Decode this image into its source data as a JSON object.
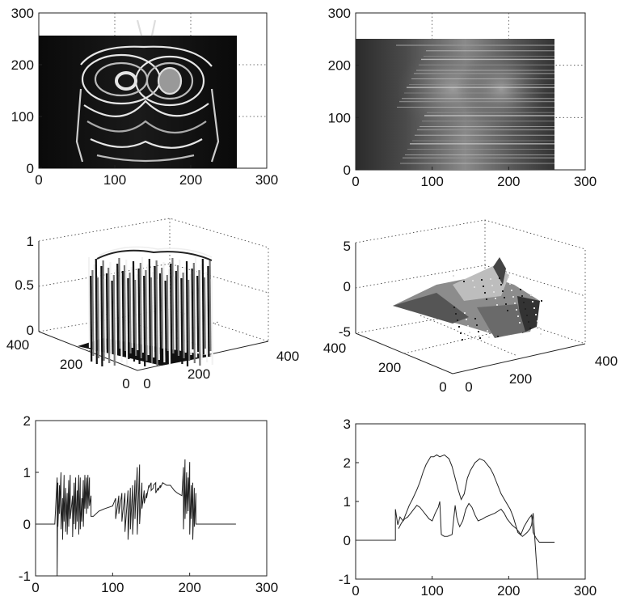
{
  "chart_data": [
    {
      "id": "wrapped-phase-image",
      "type": "heatmap",
      "description_hidden": true,
      "xlim": [
        0,
        300
      ],
      "ylim": [
        0,
        300
      ],
      "x_ticks": [
        "0",
        "100",
        "200",
        "300"
      ],
      "y_ticks": [
        "0",
        "100",
        "200",
        "300"
      ],
      "image_extent": {
        "x": [
          0,
          256
        ],
        "y": [
          0,
          256
        ]
      },
      "grid": true
    },
    {
      "id": "unwrapped-phase-image",
      "type": "heatmap",
      "xlim": [
        0,
        300
      ],
      "ylim": [
        0,
        300
      ],
      "x_ticks": [
        "0",
        "100",
        "200",
        "300"
      ],
      "y_ticks": [
        "0",
        "100",
        "200",
        "300"
      ],
      "image_extent": {
        "x": [
          0,
          256
        ],
        "y": [
          0,
          256
        ]
      },
      "grid": true
    },
    {
      "id": "wrapped-phase-surface",
      "type": "surface",
      "zlim": [
        0,
        1
      ],
      "z_ticks": [
        "0",
        "0.5",
        "1"
      ],
      "x_ticks": [
        "0",
        "200",
        "400"
      ],
      "y_ticks": [
        "0",
        "200",
        "400"
      ],
      "grid": true
    },
    {
      "id": "unwrapped-phase-surface",
      "type": "surface",
      "zlim": [
        -5,
        5
      ],
      "z_ticks": [
        "-5",
        "0",
        "5"
      ],
      "x_ticks": [
        "0",
        "200",
        "400"
      ],
      "y_ticks": [
        "0",
        "200",
        "400"
      ],
      "grid": true
    },
    {
      "id": "wrapped-profile",
      "type": "line",
      "xlim": [
        0,
        300
      ],
      "ylim": [
        -1,
        2
      ],
      "x_ticks": [
        "0",
        "100",
        "200",
        "300"
      ],
      "y_ticks": [
        "-1",
        "0",
        "1",
        "2"
      ],
      "grid": false,
      "series": [
        {
          "x": [
            0,
            25,
            28,
            28,
            29,
            29,
            31,
            31,
            33,
            33,
            35,
            35,
            37,
            37,
            39,
            39,
            41,
            41,
            43,
            43,
            45,
            45,
            48,
            48,
            50,
            50,
            52,
            52,
            54,
            54,
            56,
            56,
            58,
            58,
            60,
            60,
            62,
            62,
            64,
            64,
            66,
            66,
            68,
            68,
            70,
            70,
            72,
            72,
            75,
            82,
            90,
            100,
            104,
            104,
            108,
            108,
            112,
            112,
            116,
            116,
            120,
            120,
            123,
            123,
            126,
            126,
            129,
            129,
            132,
            132,
            135,
            135,
            138,
            138,
            141,
            141,
            144,
            144,
            147,
            147,
            150,
            150,
            153,
            153,
            156,
            156,
            159,
            159,
            162,
            162,
            165,
            170,
            175,
            180,
            184,
            190,
            192,
            192,
            194,
            194,
            196,
            196,
            198,
            198,
            200,
            200,
            202,
            202,
            204,
            204,
            206,
            206,
            208,
            208,
            260
          ],
          "y": [
            0,
            0,
            0.9,
            -1,
            0.8,
            -0.05,
            0.75,
            0.2,
            1.0,
            -0.1,
            0.5,
            -0.3,
            0.95,
            0.05,
            0.7,
            -0.15,
            0.6,
            -0.2,
            0.85,
            -0.05,
            0.95,
            0.1,
            0.55,
            -0.25,
            0.8,
            0,
            0.9,
            -0.1,
            0.65,
            0.05,
            0.95,
            -0.2,
            0.9,
            -0.1,
            0.5,
            0.05,
            0.85,
            -0.05,
            0.95,
            0.3,
            0.9,
            0.2,
            0.95,
            0.3,
            0.9,
            0.35,
            0.55,
            0.15,
            0.15,
            0.25,
            0.3,
            0.35,
            0.5,
            0.1,
            0.55,
            0.2,
            0.6,
            0.05,
            0.6,
            -0.15,
            0.65,
            -0.3,
            0.7,
            -0.1,
            0.75,
            -0.2,
            0.85,
            0.1,
            1.1,
            -0.2,
            1.15,
            0.0,
            0.8,
            0.3,
            0.65,
            0.4,
            0.6,
            0.5,
            0.75,
            0.7,
            0.8,
            0.65,
            0.7,
            0.75,
            0.8,
            0.6,
            0.7,
            0.65,
            0.75,
            0.7,
            0.8,
            0.75,
            0.75,
            0.65,
            0.6,
            0.55,
            1.1,
            -0.1,
            1.25,
            0.1,
            1.0,
            0.2,
            0.9,
            0.25,
            1.2,
            -0.2,
            0.75,
            0.1,
            0.8,
            -0.3,
            0.7,
            -0.05,
            0.6,
            0,
            0
          ]
        }
      ]
    },
    {
      "id": "unwrapped-profile",
      "type": "line",
      "xlim": [
        0,
        300
      ],
      "ylim": [
        -1,
        3
      ],
      "x_ticks": [
        "0",
        "100",
        "200",
        "300"
      ],
      "y_ticks": [
        "-1",
        "0",
        "1",
        "2",
        "3"
      ],
      "grid": false,
      "series": [
        {
          "x": [
            0,
            52,
            52,
            55,
            58,
            62,
            66,
            70,
            74,
            80,
            84,
            88,
            92,
            95,
            98,
            102,
            106,
            110,
            116,
            122,
            126,
            130,
            134,
            138,
            142,
            146,
            150,
            156,
            162,
            168,
            172,
            176,
            180,
            184,
            190,
            196,
            202,
            206,
            212,
            218,
            224,
            228,
            230,
            232,
            234,
            236,
            238
          ],
          "y": [
            0,
            0,
            0.8,
            0.4,
            0.6,
            0.5,
            0.7,
            0.9,
            1.05,
            1.3,
            1.5,
            1.75,
            1.95,
            2.05,
            2.15,
            2.15,
            2.2,
            2.15,
            2.2,
            2.1,
            1.9,
            1.6,
            1.3,
            1.05,
            1.2,
            1.6,
            1.8,
            2.0,
            2.1,
            2.05,
            1.95,
            1.85,
            1.7,
            1.5,
            1.2,
            1.0,
            0.8,
            0.6,
            0.2,
            0.1,
            0.2,
            0.3,
            0.4,
            0.7,
            0.1,
            -0.5,
            -1
          ]
        },
        {
          "x": [
            56,
            60,
            64,
            68,
            72,
            76,
            80,
            84,
            88,
            92,
            96,
            100,
            104,
            108,
            110,
            112,
            116,
            120,
            126,
            130,
            132,
            134,
            136,
            140,
            144,
            148,
            152,
            156,
            160,
            166,
            170,
            176,
            182,
            186,
            190,
            194,
            198,
            204,
            210,
            216,
            220,
            226,
            230,
            232,
            236,
            240,
            244,
            250,
            260
          ],
          "y": [
            0.3,
            0.45,
            0.55,
            0.6,
            0.7,
            0.8,
            0.9,
            0.85,
            0.75,
            0.65,
            0.55,
            0.5,
            0.7,
            0.85,
            1.0,
            0.15,
            0.1,
            0.1,
            0.15,
            0.9,
            0.6,
            0.45,
            0.35,
            0.5,
            0.8,
            0.95,
            0.85,
            0.65,
            0.5,
            0.55,
            0.6,
            0.65,
            0.7,
            0.75,
            0.8,
            0.7,
            0.55,
            0.4,
            0.3,
            0.15,
            0.35,
            0.55,
            0.65,
            0.2,
            0.05,
            -0.05,
            -0.05,
            -0.05,
            -0.05
          ]
        }
      ]
    }
  ]
}
